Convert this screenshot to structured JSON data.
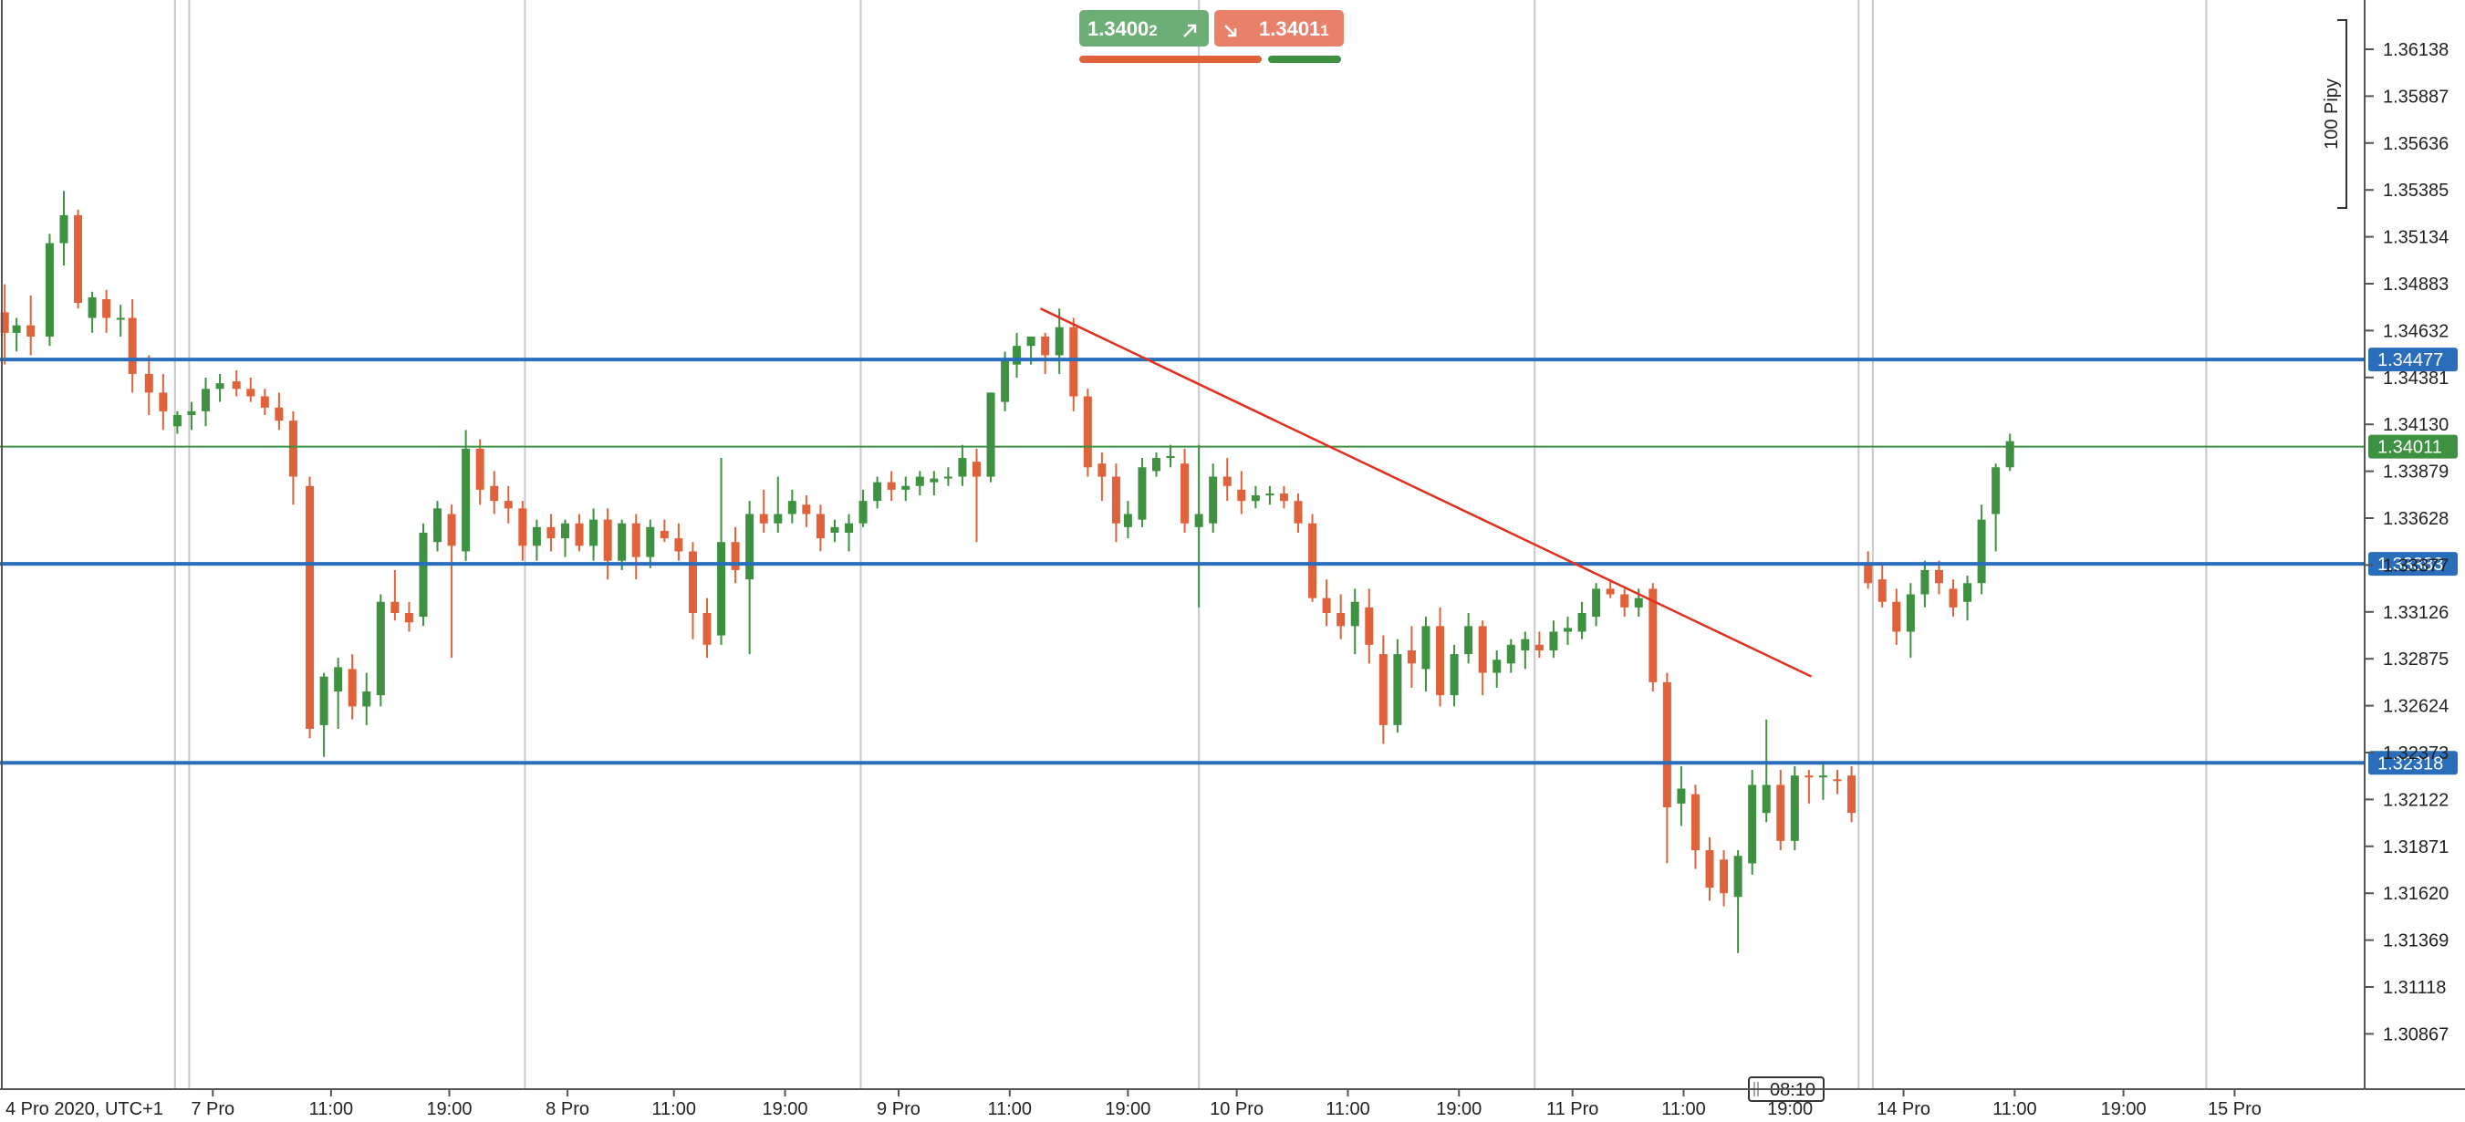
{
  "chart_data": {
    "type": "candlestick",
    "timezone_label": "4 Pro 2020, UTC+1",
    "y_ticks": [
      "1.36138",
      "1.35887",
      "1.35636",
      "1.35385",
      "1.35134",
      "1.34883",
      "1.34632",
      "1.34381",
      "1.34130",
      "1.33879",
      "1.33628",
      "1.33377",
      "1.33126",
      "1.32875",
      "1.32624",
      "1.32373",
      "1.32122",
      "1.31871",
      "1.31620",
      "1.31369",
      "1.31118",
      "1.30867"
    ],
    "x_ticks": [
      {
        "label": "7 Pro",
        "x": 0.09
      },
      {
        "label": "11:00",
        "x": 0.14
      },
      {
        "label": "19:00",
        "x": 0.19
      },
      {
        "label": "8 Pro",
        "x": 0.24
      },
      {
        "label": "11:00",
        "x": 0.285
      },
      {
        "label": "19:00",
        "x": 0.332
      },
      {
        "label": "9 Pro",
        "x": 0.38
      },
      {
        "label": "11:00",
        "x": 0.427
      },
      {
        "label": "19:00",
        "x": 0.477
      },
      {
        "label": "10 Pro",
        "x": 0.523
      },
      {
        "label": "11:00",
        "x": 0.57
      },
      {
        "label": "19:00",
        "x": 0.617
      },
      {
        "label": "11 Pro",
        "x": 0.665
      },
      {
        "label": "11:00",
        "x": 0.712
      },
      {
        "label": "19:00",
        "x": 0.757
      },
      {
        "label": "14 Pro",
        "x": 0.805
      },
      {
        "label": "11:00",
        "x": 0.852
      },
      {
        "label": "19:00",
        "x": 0.898
      },
      {
        "label": "15 Pro",
        "x": 0.945
      }
    ],
    "crosshair_time": "08:10",
    "session_separators": [
      0.074,
      0.08,
      0.222,
      0.364,
      0.507,
      0.649,
      0.786,
      0.792,
      0.933
    ],
    "horizontal_levels": [
      {
        "value": 1.34477,
        "label": "1.34477",
        "color": "#2a6ebb"
      },
      {
        "value": 1.33383,
        "label": "1.33383",
        "color": "#2a6ebb"
      },
      {
        "value": 1.32318,
        "label": "1.32318",
        "color": "#2a6ebb"
      }
    ],
    "current_price": {
      "value": 1.34011,
      "label": "1.34011",
      "color": "#3d9140"
    },
    "trendline": {
      "x1": 0.44,
      "y1": 1.3475,
      "x2": 0.766,
      "y2": 1.3278,
      "color": "#e0301e"
    },
    "candles": [
      [
        0.002,
        1.3473,
        1.3488,
        1.3445,
        1.3462
      ],
      [
        0.007,
        1.3462,
        1.347,
        1.3452,
        1.3466
      ],
      [
        0.013,
        1.3466,
        1.3482,
        1.345,
        1.346
      ],
      [
        0.021,
        1.346,
        1.3515,
        1.3455,
        1.351
      ],
      [
        0.027,
        1.351,
        1.3538,
        1.3498,
        1.3525
      ],
      [
        0.033,
        1.3525,
        1.3528,
        1.3475,
        1.3478
      ],
      [
        0.039,
        1.347,
        1.3484,
        1.3462,
        1.3481
      ],
      [
        0.045,
        1.348,
        1.3485,
        1.3462,
        1.347
      ],
      [
        0.051,
        1.3469,
        1.3477,
        1.346,
        1.347
      ],
      [
        0.056,
        1.347,
        1.348,
        1.343,
        1.344
      ],
      [
        0.063,
        1.344,
        1.345,
        1.3418,
        1.343
      ],
      [
        0.069,
        1.343,
        1.344,
        1.341,
        1.342
      ],
      [
        0.075,
        1.3412,
        1.342,
        1.3408,
        1.3418
      ],
      [
        0.081,
        1.3418,
        1.3425,
        1.341,
        1.342
      ],
      [
        0.087,
        1.342,
        1.3438,
        1.3412,
        1.3432
      ],
      [
        0.093,
        1.3432,
        1.344,
        1.3425,
        1.3435
      ],
      [
        0.1,
        1.3436,
        1.3442,
        1.3428,
        1.3432
      ],
      [
        0.106,
        1.3432,
        1.3438,
        1.3425,
        1.3428
      ],
      [
        0.112,
        1.3428,
        1.3432,
        1.3418,
        1.3422
      ],
      [
        0.118,
        1.3422,
        1.343,
        1.341,
        1.3415
      ],
      [
        0.124,
        1.3415,
        1.342,
        1.337,
        1.3385
      ],
      [
        0.131,
        1.338,
        1.3385,
        1.3245,
        1.325
      ],
      [
        0.137,
        1.3252,
        1.328,
        1.3235,
        1.3278
      ],
      [
        0.143,
        1.327,
        1.3288,
        1.325,
        1.3283
      ],
      [
        0.149,
        1.3282,
        1.329,
        1.3255,
        1.3262
      ],
      [
        0.155,
        1.3262,
        1.328,
        1.3252,
        1.327
      ],
      [
        0.161,
        1.3268,
        1.3322,
        1.3262,
        1.3318
      ],
      [
        0.167,
        1.3318,
        1.3335,
        1.3308,
        1.3312
      ],
      [
        0.173,
        1.3312,
        1.3318,
        1.3302,
        1.3307
      ],
      [
        0.179,
        1.331,
        1.336,
        1.3305,
        1.3355
      ],
      [
        0.185,
        1.335,
        1.3372,
        1.3345,
        1.3368
      ],
      [
        0.191,
        1.3365,
        1.337,
        1.3288,
        1.3348
      ],
      [
        0.197,
        1.3345,
        1.341,
        1.334,
        1.34
      ],
      [
        0.203,
        1.34,
        1.3405,
        1.337,
        1.3378
      ],
      [
        0.209,
        1.338,
        1.3388,
        1.3365,
        1.3372
      ],
      [
        0.215,
        1.3372,
        1.338,
        1.336,
        1.3368
      ],
      [
        0.221,
        1.3368,
        1.3372,
        1.334,
        1.3348
      ],
      [
        0.227,
        1.3348,
        1.3362,
        1.334,
        1.3358
      ],
      [
        0.233,
        1.3358,
        1.3365,
        1.3345,
        1.3352
      ],
      [
        0.239,
        1.3352,
        1.3362,
        1.3342,
        1.336
      ],
      [
        0.245,
        1.336,
        1.3365,
        1.3345,
        1.3348
      ],
      [
        0.251,
        1.3348,
        1.3368,
        1.334,
        1.3362
      ],
      [
        0.257,
        1.3362,
        1.3368,
        1.333,
        1.334
      ],
      [
        0.263,
        1.334,
        1.3362,
        1.3335,
        1.336
      ],
      [
        0.269,
        1.336,
        1.3365,
        1.333,
        1.3342
      ],
      [
        0.275,
        1.3342,
        1.3362,
        1.3336,
        1.3358
      ],
      [
        0.281,
        1.3356,
        1.3362,
        1.335,
        1.3352
      ],
      [
        0.287,
        1.3352,
        1.336,
        1.334,
        1.3345
      ],
      [
        0.293,
        1.3345,
        1.335,
        1.3298,
        1.3312
      ],
      [
        0.299,
        1.3312,
        1.332,
        1.3288,
        1.3295
      ],
      [
        0.305,
        1.33,
        1.3395,
        1.3295,
        1.335
      ],
      [
        0.311,
        1.335,
        1.3358,
        1.3328,
        1.3335
      ],
      [
        0.317,
        1.333,
        1.3372,
        1.329,
        1.3365
      ],
      [
        0.323,
        1.3365,
        1.3378,
        1.3355,
        1.336
      ],
      [
        0.329,
        1.336,
        1.3385,
        1.3355,
        1.3365
      ],
      [
        0.335,
        1.3365,
        1.3378,
        1.336,
        1.3372
      ],
      [
        0.341,
        1.337,
        1.3375,
        1.3358,
        1.3365
      ],
      [
        0.347,
        1.3365,
        1.337,
        1.3345,
        1.3352
      ],
      [
        0.353,
        1.3355,
        1.3362,
        1.335,
        1.3358
      ],
      [
        0.359,
        1.3355,
        1.3365,
        1.3345,
        1.336
      ],
      [
        0.365,
        1.336,
        1.3378,
        1.3358,
        1.3372
      ],
      [
        0.371,
        1.3372,
        1.3385,
        1.3368,
        1.3382
      ],
      [
        0.377,
        1.3382,
        1.3388,
        1.3372,
        1.3378
      ],
      [
        0.383,
        1.3378,
        1.3385,
        1.3372,
        1.338
      ],
      [
        0.389,
        1.338,
        1.3388,
        1.3375,
        1.3385
      ],
      [
        0.395,
        1.3382,
        1.3388,
        1.3375,
        1.3384
      ],
      [
        0.401,
        1.3384,
        1.339,
        1.338,
        1.3385
      ],
      [
        0.407,
        1.3385,
        1.3402,
        1.338,
        1.3395
      ],
      [
        0.413,
        1.3393,
        1.34,
        1.335,
        1.3385
      ],
      [
        0.419,
        1.3385,
        1.343,
        1.3382,
        1.343
      ],
      [
        0.425,
        1.3425,
        1.3452,
        1.342,
        1.3448
      ],
      [
        0.43,
        1.3445,
        1.3462,
        1.3438,
        1.3455
      ],
      [
        0.436,
        1.3455,
        1.346,
        1.3445,
        1.346
      ],
      [
        0.442,
        1.346,
        1.3462,
        1.344,
        1.345
      ],
      [
        0.448,
        1.345,
        1.3475,
        1.344,
        1.3465
      ],
      [
        0.454,
        1.3465,
        1.347,
        1.342,
        1.3428
      ],
      [
        0.46,
        1.3428,
        1.3432,
        1.3385,
        1.339
      ],
      [
        0.466,
        1.3392,
        1.3398,
        1.3372,
        1.3385
      ],
      [
        0.472,
        1.3385,
        1.3392,
        1.335,
        1.336
      ],
      [
        0.477,
        1.3358,
        1.3372,
        1.3352,
        1.3365
      ],
      [
        0.483,
        1.3362,
        1.3395,
        1.3358,
        1.339
      ],
      [
        0.489,
        1.3388,
        1.3398,
        1.3385,
        1.3395
      ],
      [
        0.495,
        1.3395,
        1.3402,
        1.339,
        1.3396
      ],
      [
        0.501,
        1.3392,
        1.34,
        1.3355,
        1.336
      ],
      [
        0.507,
        1.3358,
        1.3402,
        1.3315,
        1.3365
      ],
      [
        0.513,
        1.336,
        1.3392,
        1.3355,
        1.3385
      ],
      [
        0.519,
        1.3385,
        1.3395,
        1.3372,
        1.338
      ],
      [
        0.525,
        1.3378,
        1.3388,
        1.3365,
        1.3372
      ],
      [
        0.531,
        1.3372,
        1.338,
        1.3368,
        1.3375
      ],
      [
        0.537,
        1.3375,
        1.338,
        1.337,
        1.3376
      ],
      [
        0.543,
        1.3376,
        1.338,
        1.3368,
        1.3372
      ],
      [
        0.549,
        1.3372,
        1.3376,
        1.3355,
        1.336
      ],
      [
        0.555,
        1.336,
        1.3365,
        1.3318,
        1.332
      ],
      [
        0.561,
        1.332,
        1.333,
        1.3305,
        1.3312
      ],
      [
        0.567,
        1.3312,
        1.3322,
        1.3298,
        1.3305
      ],
      [
        0.573,
        1.3305,
        1.3325,
        1.329,
        1.3318
      ],
      [
        0.579,
        1.3315,
        1.3325,
        1.3285,
        1.3295
      ],
      [
        0.585,
        1.329,
        1.33,
        1.3242,
        1.3252
      ],
      [
        0.591,
        1.3252,
        1.3298,
        1.3248,
        1.329
      ],
      [
        0.597,
        1.3292,
        1.3305,
        1.3272,
        1.3285
      ],
      [
        0.603,
        1.3282,
        1.331,
        1.327,
        1.3305
      ],
      [
        0.609,
        1.3305,
        1.3315,
        1.3262,
        1.3268
      ],
      [
        0.615,
        1.3268,
        1.3295,
        1.3262,
        1.329
      ],
      [
        0.621,
        1.329,
        1.3312,
        1.3285,
        1.3305
      ],
      [
        0.627,
        1.3305,
        1.3308,
        1.3268,
        1.328
      ],
      [
        0.633,
        1.328,
        1.3292,
        1.3272,
        1.3287
      ],
      [
        0.639,
        1.3285,
        1.3298,
        1.328,
        1.3295
      ],
      [
        0.645,
        1.3292,
        1.3302,
        1.3282,
        1.3298
      ],
      [
        0.651,
        1.3295,
        1.3302,
        1.3288,
        1.3292
      ],
      [
        0.657,
        1.3292,
        1.3308,
        1.3288,
        1.3302
      ],
      [
        0.663,
        1.3302,
        1.331,
        1.3295,
        1.3304
      ],
      [
        0.669,
        1.3302,
        1.3318,
        1.3298,
        1.3312
      ],
      [
        0.675,
        1.331,
        1.3328,
        1.3305,
        1.3325
      ],
      [
        0.681,
        1.3325,
        1.333,
        1.332,
        1.3322
      ],
      [
        0.687,
        1.3322,
        1.3325,
        1.331,
        1.3315
      ],
      [
        0.693,
        1.3315,
        1.3325,
        1.331,
        1.332
      ],
      [
        0.699,
        1.3325,
        1.3328,
        1.327,
        1.3275
      ],
      [
        0.705,
        1.3275,
        1.328,
        1.3178,
        1.3208
      ],
      [
        0.711,
        1.321,
        1.323,
        1.3198,
        1.3218
      ],
      [
        0.717,
        1.3215,
        1.322,
        1.3175,
        1.3185
      ],
      [
        0.723,
        1.3185,
        1.3192,
        1.3158,
        1.3165
      ],
      [
        0.729,
        1.318,
        1.3185,
        1.3155,
        1.3162
      ],
      [
        0.735,
        1.316,
        1.3185,
        1.313,
        1.3182
      ],
      [
        0.741,
        1.3178,
        1.3228,
        1.3172,
        1.322
      ],
      [
        0.747,
        1.3205,
        1.3255,
        1.32,
        1.322
      ],
      [
        0.753,
        1.322,
        1.3228,
        1.3185,
        1.319
      ],
      [
        0.759,
        1.319,
        1.323,
        1.3185,
        1.3225
      ],
      [
        0.765,
        1.3225,
        1.3228,
        1.321,
        1.3224
      ],
      [
        0.771,
        1.3225,
        1.3232,
        1.3212,
        1.3225
      ],
      [
        0.777,
        1.3223,
        1.3228,
        1.3215,
        1.3222
      ],
      [
        0.783,
        1.3225,
        1.323,
        1.32,
        1.3205
      ],
      [
        0.79,
        1.3338,
        1.3345,
        1.3325,
        1.3328
      ],
      [
        0.796,
        1.333,
        1.3338,
        1.3315,
        1.3318
      ],
      [
        0.802,
        1.3318,
        1.3325,
        1.3295,
        1.3302
      ],
      [
        0.808,
        1.3302,
        1.3328,
        1.3288,
        1.3322
      ],
      [
        0.814,
        1.3322,
        1.334,
        1.3315,
        1.3335
      ],
      [
        0.82,
        1.3335,
        1.334,
        1.3322,
        1.3328
      ],
      [
        0.826,
        1.3325,
        1.333,
        1.331,
        1.3315
      ],
      [
        0.832,
        1.3318,
        1.3332,
        1.3308,
        1.3328
      ],
      [
        0.838,
        1.3328,
        1.337,
        1.3322,
        1.3362
      ],
      [
        0.844,
        1.3365,
        1.3392,
        1.3345,
        1.339
      ],
      [
        0.85,
        1.339,
        1.3408,
        1.3388,
        1.3404
      ]
    ]
  },
  "quote_bid": {
    "main": "1.3400",
    "small": "2",
    "color": "#6cae75"
  },
  "quote_ask": {
    "main": "1.3401",
    "small": "1",
    "color": "#e8806a"
  },
  "scale_label": "100 Pipy",
  "colors": {
    "bull": "#3d9140",
    "bear": "#e0623a",
    "grid": "#c8c8c8"
  }
}
